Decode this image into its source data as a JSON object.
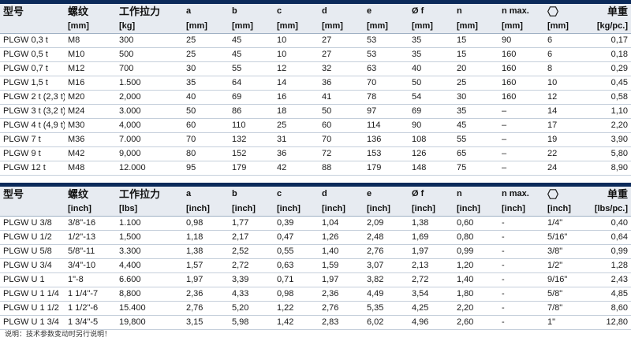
{
  "metric_table": {
    "headers_top": [
      "型号",
      "螺纹",
      "工作拉力",
      "a",
      "b",
      "c",
      "d",
      "e",
      "Ø f",
      "n",
      "n max.",
      "hex-icon",
      "单重"
    ],
    "headers_unit": [
      "",
      "[mm]",
      "[kg]",
      "[mm]",
      "[mm]",
      "[mm]",
      "[mm]",
      "[mm]",
      "[mm]",
      "[mm]",
      "[mm]",
      "[mm]",
      "[kg/pc.]"
    ],
    "rows": [
      [
        "PLGW 0,3 t",
        "M8",
        "300",
        "25",
        "45",
        "10",
        "27",
        "53",
        "35",
        "15",
        "90",
        "6",
        "0,17"
      ],
      [
        "PLGW 0,5 t",
        "M10",
        "500",
        "25",
        "45",
        "10",
        "27",
        "53",
        "35",
        "15",
        "160",
        "6",
        "0,18"
      ],
      [
        "PLGW 0,7 t",
        "M12",
        "700",
        "30",
        "55",
        "12",
        "32",
        "63",
        "40",
        "20",
        "160",
        "8",
        "0,29"
      ],
      [
        "PLGW 1,5 t",
        "M16",
        "1.500",
        "35",
        "64",
        "14",
        "36",
        "70",
        "50",
        "25",
        "160",
        "10",
        "0,45"
      ],
      [
        "PLGW 2 t (2,3 t)",
        "M20",
        "2,000",
        "40",
        "69",
        "16",
        "41",
        "78",
        "54",
        "30",
        "160",
        "12",
        "0,58"
      ],
      [
        "PLGW 3 t (3,2 t)",
        "M24",
        "3.000",
        "50",
        "86",
        "18",
        "50",
        "97",
        "69",
        "35",
        "–",
        "14",
        "1,10"
      ],
      [
        "PLGW 4 t (4,9 t)",
        "M30",
        "4,000",
        "60",
        "110",
        "25",
        "60",
        "114",
        "90",
        "45",
        "–",
        "17",
        "2,20"
      ],
      [
        "PLGW 7 t",
        "M36",
        "7.000",
        "70",
        "132",
        "31",
        "70",
        "136",
        "108",
        "55",
        "–",
        "19",
        "3,90"
      ],
      [
        "PLGW 9 t",
        "M42",
        "9,000",
        "80",
        "152",
        "36",
        "72",
        "153",
        "126",
        "65",
        "–",
        "22",
        "5,80"
      ],
      [
        "PLGW 12 t",
        "M48",
        "12.000",
        "95",
        "179",
        "42",
        "88",
        "179",
        "148",
        "75",
        "–",
        "24",
        "8,90"
      ]
    ]
  },
  "imperial_table": {
    "headers_top": [
      "型号",
      "螺纹",
      "工作拉力",
      "a",
      "b",
      "c",
      "d",
      "e",
      "Ø f",
      "n",
      "n max.",
      "hex-icon",
      "单重"
    ],
    "headers_unit": [
      "",
      "[inch]",
      "[lbs]",
      "[inch]",
      "[inch]",
      "[inch]",
      "[inch]",
      "[inch]",
      "[inch]",
      "[inch]",
      "[inch]",
      "[inch]",
      "[lbs/pc.]"
    ],
    "rows": [
      [
        "PLGW U 3/8",
        "3/8\"-16",
        "1.100",
        "0,98",
        "1,77",
        "0,39",
        "1,04",
        "2,09",
        "1,38",
        "0,60",
        "-",
        "1/4\"",
        "0,40"
      ],
      [
        "PLGW U 1/2",
        "1/2\"-13",
        "1,500",
        "1,18",
        "2,17",
        "0,47",
        "1,26",
        "2,48",
        "1,69",
        "0,80",
        "-",
        "5/16\"",
        "0,64"
      ],
      [
        "PLGW U 5/8",
        "5/8\"-11",
        "3.300",
        "1,38",
        "2,52",
        "0,55",
        "1,40",
        "2,76",
        "1,97",
        "0,99",
        "-",
        "3/8\"",
        "0,99"
      ],
      [
        "PLGW U 3/4",
        "3/4\"-10",
        "4,400",
        "1,57",
        "2,72",
        "0,63",
        "1,59",
        "3,07",
        "2,13",
        "1,20",
        "-",
        "1/2\"",
        "1,28"
      ],
      [
        "PLGW U 1",
        "1\"-8",
        "6.600",
        "1,97",
        "3,39",
        "0,71",
        "1,97",
        "3,82",
        "2,72",
        "1,40",
        "-",
        "9/16\"",
        "2,43"
      ],
      [
        "PLGW U 1 1/4",
        "1 1/4\"-7",
        "8,800",
        "2,36",
        "4,33",
        "0,98",
        "2,36",
        "4,49",
        "3,54",
        "1,80",
        "-",
        "5/8\"",
        "4,85"
      ],
      [
        "PLGW U 1 1/2",
        "1 1/2\"-6",
        "15.400",
        "2,76",
        "5,20",
        "1,22",
        "2,76",
        "5,35",
        "4,25",
        "2,20",
        "-",
        "7/8\"",
        "8,60"
      ],
      [
        "PLGW U 1 3/4",
        "1 3/4\"-5",
        "19,800",
        "3,15",
        "5,98",
        "1,42",
        "2,83",
        "6,02",
        "4,96",
        "2,60",
        "-",
        "1\"",
        "12,80"
      ]
    ]
  },
  "footnote": "说明：技术参数变动时另行说明！",
  "colors": {
    "header_bg": "#e7ebf1",
    "divider_bar": "#0b2a5a",
    "row_line": "#c5cfdb"
  }
}
